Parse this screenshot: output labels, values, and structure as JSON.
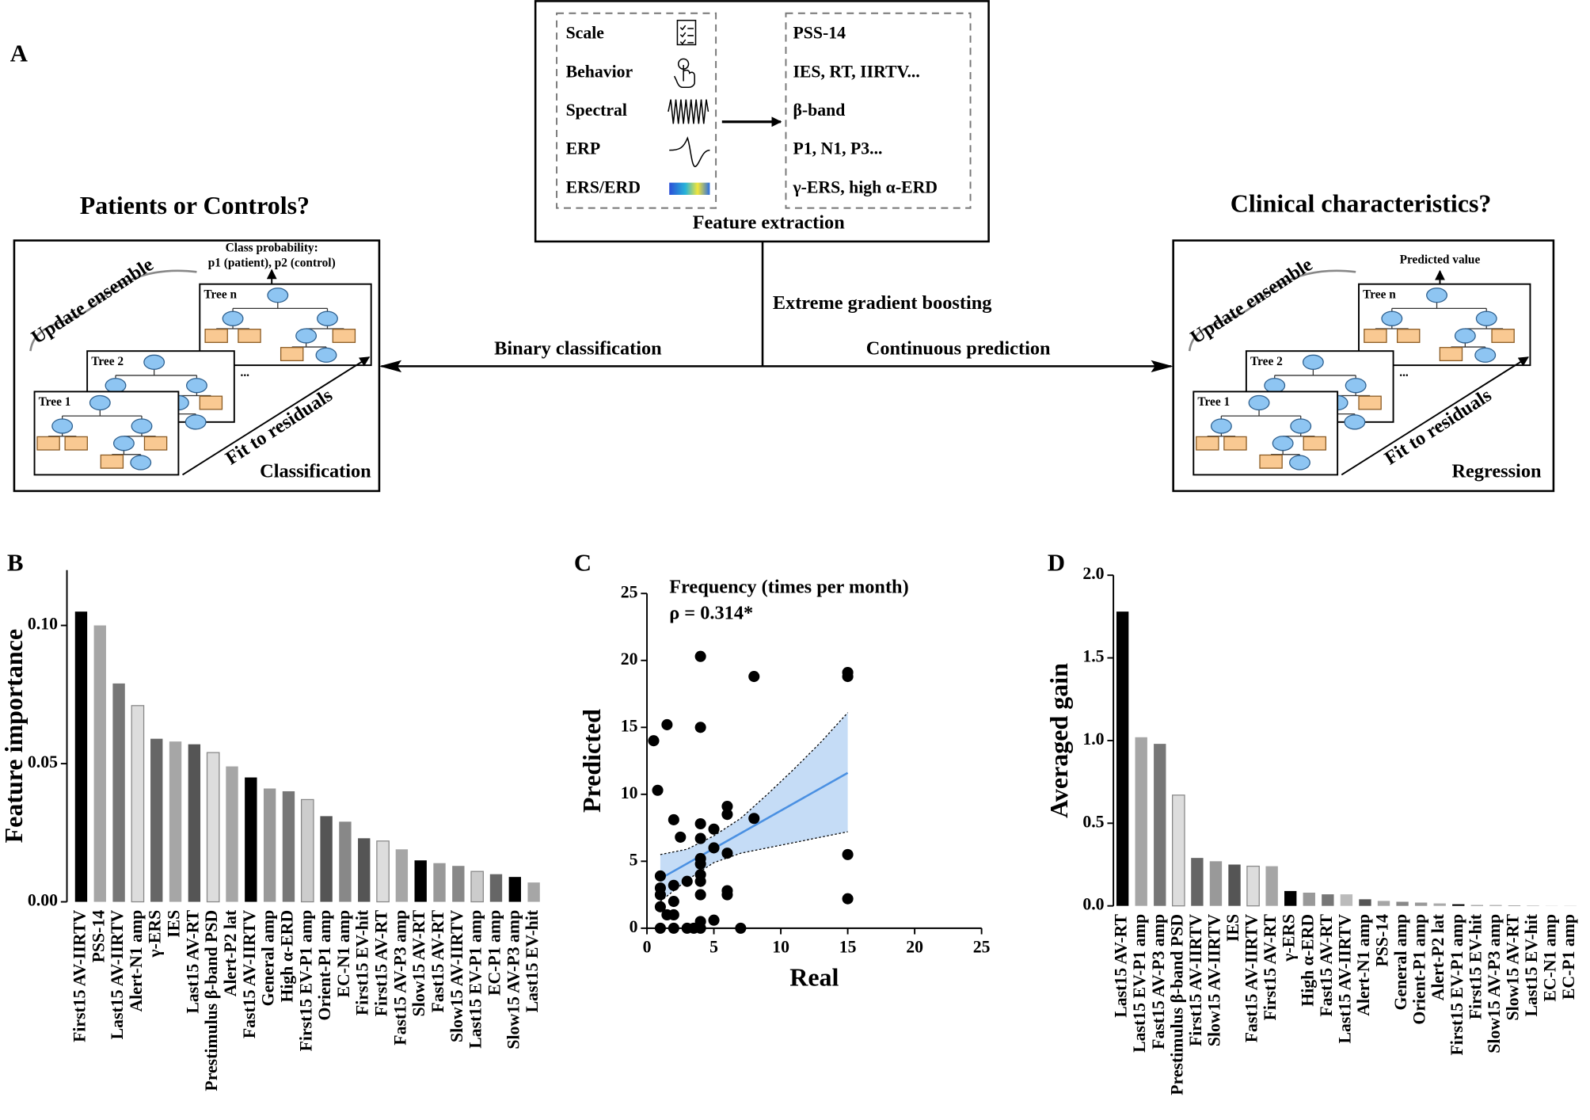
{
  "panel_labels": [
    "A",
    "B",
    "C",
    "D"
  ],
  "diagram": {
    "feature_box": {
      "sources": [
        "Scale",
        "Behavior",
        "Spectral",
        "ERP",
        "ERS/ERD"
      ],
      "features": [
        "PSS-14",
        "IES, RT, IIRTV...",
        "β-band",
        "P1, N1, P3...",
        "γ-ERS, high α-ERD"
      ],
      "caption": "Feature extraction"
    },
    "method": "Extreme gradient boosting",
    "left_arrow": "Binary classification",
    "right_arrow": "Continuous prediction",
    "classification": {
      "question": "Patients or Controls?",
      "output": [
        "Class probability:",
        "p1 (patient), p2 (control)"
      ],
      "update": "Update ensemble",
      "trees": [
        "Tree n",
        "Tree 2",
        "Tree 1"
      ],
      "ellipsis": "...",
      "fit": "Fit to residuals",
      "label": "Classification"
    },
    "regression": {
      "question": "Clinical characteristics?",
      "output": [
        "Predicted value"
      ],
      "update": "Update ensemble",
      "trees": [
        "Tree n",
        "Tree 2",
        "Tree 1"
      ],
      "ellipsis": "...",
      "fit": "Fit to residuals",
      "label": "Regression"
    }
  },
  "chart_data": [
    {
      "type": "bar",
      "ylabel": "Feature importance",
      "categories": [
        "First15 AV-IIRTV",
        "PSS-14",
        "Last15 AV-IIRTV",
        "Alert-N1 amp",
        "γ-ERS",
        "IES",
        "Last15 AV-RT",
        "Prestimulus β-band PSD",
        "Alert-P2 lat",
        "Fast15 AV-IIRTV",
        "General amp",
        "High α-ERD",
        "First15 EV-P1 amp",
        "Orient-P1 amp",
        "EC-N1 amp",
        "First15 EV-hit",
        "First15 AV-RT",
        "Fast15 AV-P3 amp",
        "Slow15 AV-RT",
        "Fast15 AV-RT",
        "Slow15 AV-IIRTV",
        "Last15 EV-P1 amp",
        "EC-P1 amp",
        "Slow15 AV-P3 amp",
        "Last15 EV-hit"
      ],
      "values": [
        0.105,
        0.1,
        0.079,
        0.071,
        0.059,
        0.058,
        0.057,
        0.054,
        0.049,
        0.045,
        0.041,
        0.04,
        0.037,
        0.031,
        0.029,
        0.023,
        0.022,
        0.019,
        0.015,
        0.014,
        0.013,
        0.011,
        0.01,
        0.009,
        0.007
      ],
      "colors": [
        "#000000",
        "#a6a6a6",
        "#777777",
        "#dddddd",
        "#666666",
        "#a6a6a6",
        "#555555",
        "#dddddd",
        "#a6a6a6",
        "#000000",
        "#999999",
        "#777777",
        "#cccccc",
        "#555555",
        "#888888",
        "#555555",
        "#dddddd",
        "#a6a6a6",
        "#000000",
        "#999999",
        "#888888",
        "#cccccc",
        "#666666",
        "#000000",
        "#a6a6a6"
      ],
      "ylim": [
        0,
        0.12
      ],
      "yticks": [
        {
          "value": 0,
          "label": "0.00"
        },
        0.05,
        {
          "value": 0.1,
          "label": "0.10"
        }
      ]
    },
    {
      "type": "scatter",
      "title": "Frequency (times per month)",
      "annotation": "ρ = 0.314*",
      "xlabel": "Real",
      "ylabel": "Predicted",
      "x": [
        0.5,
        0.8,
        1,
        1,
        1,
        1,
        1,
        1.5,
        1.5,
        2,
        2,
        2,
        2,
        2,
        2.5,
        3,
        3,
        3.5,
        4,
        4,
        4,
        4,
        4,
        4,
        4,
        4,
        4,
        4,
        4,
        5,
        5,
        5,
        6,
        6,
        6,
        6,
        6,
        7,
        8,
        8,
        15,
        15,
        15,
        15
      ],
      "y": [
        14,
        10.3,
        3.9,
        3,
        2.5,
        1.6,
        0,
        15.2,
        1,
        8.1,
        3.2,
        2,
        1,
        0,
        6.8,
        3.5,
        0,
        0,
        20.3,
        15,
        7.8,
        6.7,
        5.2,
        4.8,
        4,
        3.5,
        2.5,
        0.5,
        0,
        7.4,
        6,
        0.6,
        9.1,
        8.5,
        5.6,
        2.8,
        2.5,
        0,
        18.8,
        8.2,
        19.1,
        18.8,
        5.5,
        2.2
      ],
      "color": "#000000",
      "fit": {
        "x": [
          1,
          15
        ],
        "y": [
          3.7,
          11.6
        ],
        "color": "#4a90e2"
      },
      "ci": {
        "x": [
          1,
          3,
          5,
          7,
          9,
          11,
          13,
          15
        ],
        "upper": [
          5.5,
          5.9,
          6.9,
          8.2,
          10,
          11.9,
          13.9,
          16.1
        ],
        "lower": [
          2.0,
          3.6,
          4.9,
          5.6,
          6.0,
          6.4,
          6.8,
          7.2
        ],
        "color": "#c5dcf6"
      },
      "xlim": [
        0,
        25
      ],
      "ylim": [
        0,
        25
      ],
      "xticks": [
        0,
        5,
        10,
        15,
        20,
        25
      ],
      "yticks": [
        0,
        5,
        10,
        15,
        20,
        25
      ]
    },
    {
      "type": "bar",
      "ylabel": "Averaged gain",
      "categories": [
        "Last15 AV-RT",
        "Last15 EV-P1 amp",
        "Fast15 AV-P3 amp",
        "Prestimulus β-band PSD",
        "First15 AV-IIRTV",
        "Slow15 AV-IIRTV",
        "IES",
        "Fast15 AV-IIRTV",
        "First15 AV-RT",
        "γ-ERS",
        "High α-ERD",
        "Fast15 AV-RT",
        "Last15 AV-IIRTV",
        "Alert-N1 amp",
        "PSS-14",
        "General amp",
        "Orient-P1 amp",
        "Alert-P2 lat",
        "First15 EV-P1 amp",
        "First15 EV-hit",
        "Slow15 AV-P3 amp",
        "Slow15 AV-RT",
        "Last15 EV-hit",
        "EC-N1 amp",
        "EC-P1 amp"
      ],
      "values": [
        1.78,
        1.02,
        0.98,
        0.67,
        0.29,
        0.27,
        0.25,
        0.24,
        0.24,
        0.09,
        0.08,
        0.07,
        0.07,
        0.04,
        0.03,
        0.025,
        0.02,
        0.015,
        0.01,
        0.005,
        0.005,
        0.003,
        0.002,
        0.001,
        0.001
      ],
      "colors": [
        "#000000",
        "#a6a6a6",
        "#777777",
        "#dddddd",
        "#666666",
        "#999999",
        "#555555",
        "#dddddd",
        "#a6a6a6",
        "#000000",
        "#999999",
        "#777777",
        "#bbbbbb",
        "#555555",
        "#a6a6a6",
        "#888888",
        "#999999",
        "#aaaaaa",
        "#000000",
        "#888888",
        "#999999",
        "#777777",
        "#888888",
        "#aaaaaa",
        "#999999"
      ],
      "ylim": [
        0,
        2.0
      ],
      "yticks": [
        {
          "value": 0,
          "label": "0.0"
        },
        0.5,
        {
          "value": 1,
          "label": "1.0"
        },
        1.5,
        {
          "value": 2,
          "label": "2.0"
        }
      ]
    }
  ]
}
